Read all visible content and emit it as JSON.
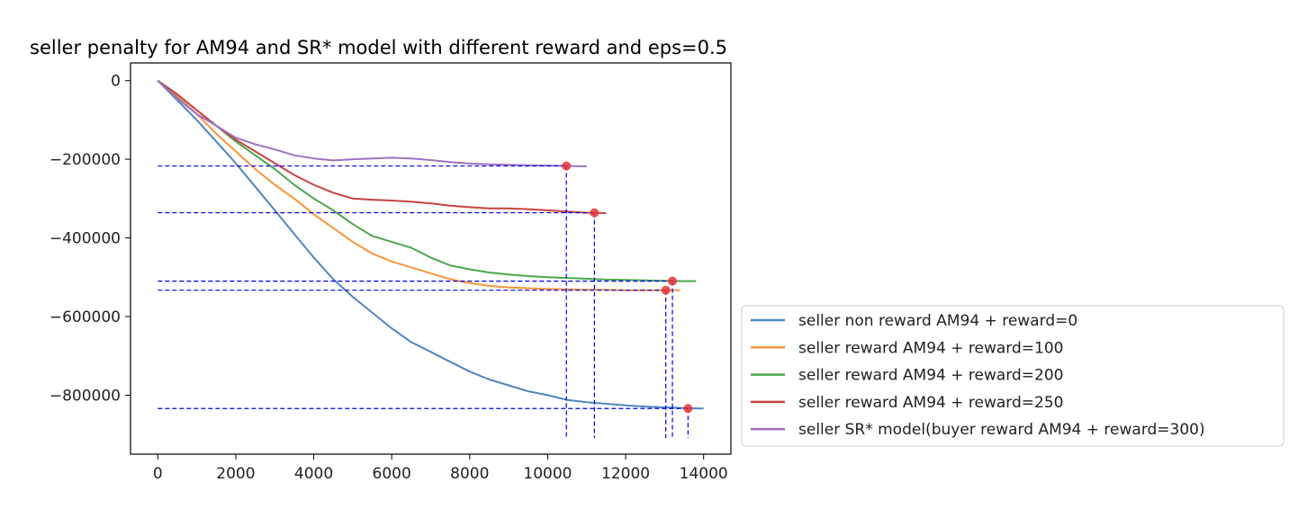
{
  "chart_data": {
    "type": "line",
    "title": "seller penalty for AM94 and SR* model with different reward and eps=0.5",
    "xlabel": "",
    "ylabel": "",
    "xlim": [
      -700,
      14700
    ],
    "ylim": [
      -950000,
      45000
    ],
    "xticks": [
      0,
      2000,
      4000,
      6000,
      8000,
      10000,
      12000,
      14000
    ],
    "yticks": [
      0,
      -200000,
      -400000,
      -600000,
      -800000
    ],
    "grid": false,
    "legend_position": "lower-right-outside",
    "series": [
      {
        "name": "seller non reward AM94 + reward=0",
        "color": "#4f86c0",
        "x": [
          0,
          500,
          1000,
          1500,
          2000,
          2500,
          3000,
          3500,
          4000,
          4500,
          5000,
          5500,
          6000,
          6500,
          7000,
          7500,
          8000,
          8500,
          9000,
          9500,
          10000,
          10500,
          11000,
          11500,
          12000,
          12500,
          13000,
          13500,
          14000
        ],
        "y": [
          0,
          -50000,
          -100000,
          -155000,
          -210000,
          -270000,
          -330000,
          -390000,
          -450000,
          -505000,
          -550000,
          -590000,
          -630000,
          -665000,
          -690000,
          -715000,
          -740000,
          -760000,
          -775000,
          -790000,
          -800000,
          -812000,
          -818000,
          -822000,
          -826000,
          -829000,
          -831000,
          -833000,
          -834000
        ],
        "marker_point": [
          13600,
          -834000
        ],
        "hline": -834000
      },
      {
        "name": "seller reward AM94 + reward=100",
        "color": "#f7953d",
        "x": [
          0,
          500,
          1000,
          1500,
          2000,
          2500,
          3000,
          3500,
          4000,
          4500,
          5000,
          5500,
          6000,
          6500,
          7000,
          7500,
          8000,
          8500,
          9000,
          9500,
          10000,
          10500,
          11000,
          11500,
          12000,
          12500,
          13000,
          13400
        ],
        "y": [
          0,
          -40000,
          -85000,
          -135000,
          -180000,
          -225000,
          -265000,
          -300000,
          -340000,
          -375000,
          -410000,
          -440000,
          -460000,
          -475000,
          -490000,
          -505000,
          -515000,
          -522000,
          -526000,
          -528000,
          -530000,
          -531000,
          -532000,
          -532000,
          -533000,
          -533000,
          -533000,
          -533000
        ],
        "marker_point": [
          13030,
          -533000
        ],
        "hline": -533000
      },
      {
        "name": "seller reward AM94 + reward=200",
        "color": "#4ba74a",
        "x": [
          0,
          500,
          1000,
          1500,
          2000,
          2500,
          3000,
          3500,
          4000,
          4500,
          5000,
          5500,
          6000,
          6500,
          7000,
          7500,
          8000,
          8500,
          9000,
          9500,
          10000,
          10500,
          11000,
          11500,
          12000,
          12500,
          13000,
          13500,
          13800
        ],
        "y": [
          0,
          -35000,
          -75000,
          -115000,
          -155000,
          -190000,
          -225000,
          -265000,
          -300000,
          -330000,
          -365000,
          -395000,
          -410000,
          -425000,
          -450000,
          -470000,
          -480000,
          -488000,
          -493000,
          -497000,
          -500000,
          -502000,
          -504000,
          -506000,
          -507000,
          -508000,
          -509000,
          -510000,
          -510000
        ],
        "marker_point": [
          13200,
          -510000
        ],
        "hline": -510000
      },
      {
        "name": "seller reward AM94 + reward=250",
        "color": "#c8423f",
        "x": [
          0,
          500,
          1000,
          1500,
          2000,
          2500,
          3000,
          3500,
          4000,
          4500,
          5000,
          5500,
          6000,
          6500,
          7000,
          7500,
          8000,
          8500,
          9000,
          9500,
          10000,
          10500,
          11000,
          11500
        ],
        "y": [
          0,
          -35000,
          -75000,
          -115000,
          -150000,
          -180000,
          -210000,
          -240000,
          -265000,
          -285000,
          -300000,
          -303000,
          -305000,
          -308000,
          -312000,
          -318000,
          -322000,
          -325000,
          -325000,
          -327000,
          -330000,
          -333000,
          -336000,
          -337000
        ],
        "marker_point": [
          11200,
          -336000
        ],
        "hline": -336000
      },
      {
        "name": "seller SR* model(buyer reward AM94 + reward=300)",
        "color": "#9c72c3",
        "x": [
          0,
          500,
          1000,
          1500,
          2000,
          2500,
          3000,
          3500,
          4000,
          4500,
          5000,
          5500,
          6000,
          6500,
          7000,
          7500,
          8000,
          8500,
          9000,
          9500,
          10000,
          10500,
          11000
        ],
        "y": [
          0,
          -45000,
          -85000,
          -115000,
          -145000,
          -162000,
          -175000,
          -190000,
          -198000,
          -203000,
          -200000,
          -198000,
          -196000,
          -198000,
          -202000,
          -207000,
          -211000,
          -213000,
          -214000,
          -215000,
          -216000,
          -217000,
          -218000
        ],
        "marker_point": [
          10480,
          -217000
        ],
        "hline": -217000
      }
    ],
    "marker_color": "#e8343a",
    "guide_line_color": "#0000ee"
  }
}
